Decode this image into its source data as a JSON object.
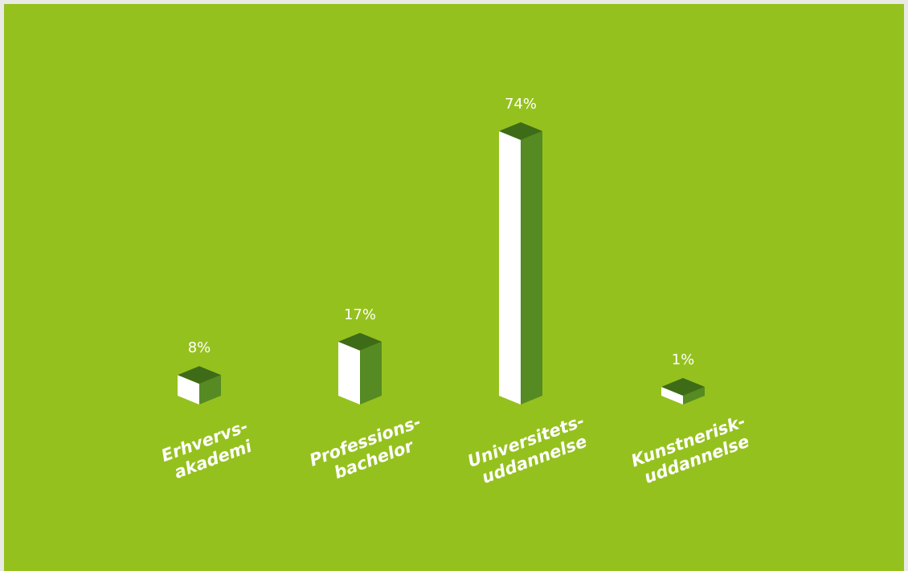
{
  "chart_data": {
    "type": "bar",
    "title": "",
    "xlabel": "",
    "ylabel": "",
    "categories": [
      [
        "Erhvervs-",
        "akademi"
      ],
      [
        "Professions-",
        "bachelor"
      ],
      [
        "Universitets-",
        "uddannelse"
      ],
      [
        "Kunstnerisk-",
        "uddannelse"
      ]
    ],
    "values": [
      8,
      17,
      74,
      1
    ],
    "value_labels": [
      "8%",
      "17%",
      "74%",
      "1%"
    ],
    "ylim": [
      0,
      74
    ],
    "grid": false,
    "legend": "none",
    "colors": {
      "background": "#95c11f",
      "bar_front": "#ffffff",
      "bar_side": "#568a22",
      "bar_top": "#3e6b17",
      "text": "#ffffff"
    }
  }
}
